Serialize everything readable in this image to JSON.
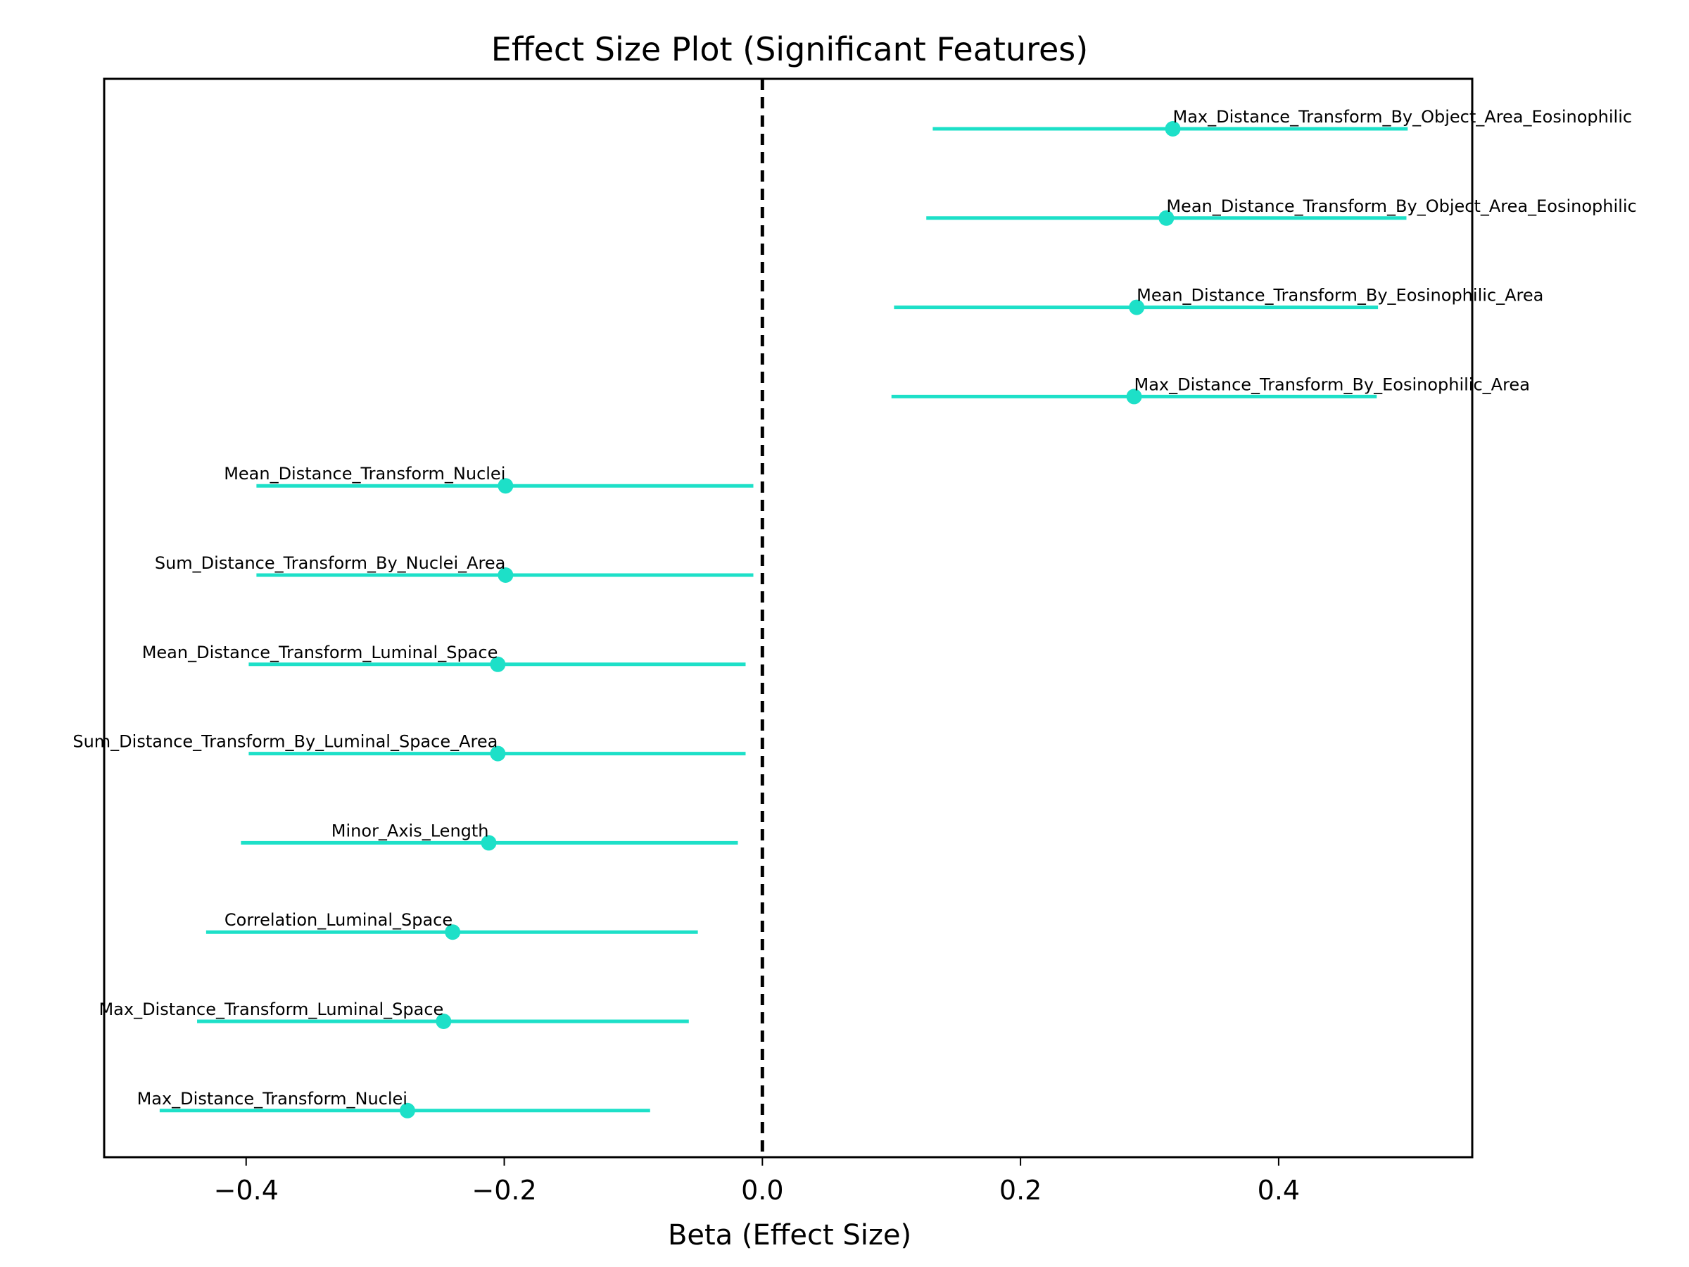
{
  "chart_data": {
    "type": "scatter",
    "title": "Effect Size Plot (Significant Features)",
    "xlabel": "Beta (Effect Size)",
    "ylabel": "",
    "xlim": [
      -0.51,
      0.55
    ],
    "xticks": [
      -0.4,
      -0.2,
      0.0,
      0.2,
      0.4
    ],
    "xtick_labels": [
      "−0.4",
      "−0.2",
      "0.0",
      "0.2",
      "0.4"
    ],
    "reference_line": {
      "x": 0.0,
      "style": "dashed",
      "color": "#000000"
    },
    "grid": false,
    "legend": "none",
    "color": "#1de0c8",
    "features": [
      {
        "name": "Max_Distance_Transform_By_Object_Area_Eosinophilic",
        "beta": 0.318,
        "ci_low": 0.132,
        "ci_high": 0.5
      },
      {
        "name": "Mean_Distance_Transform_By_Object_Area_Eosinophilic",
        "beta": 0.313,
        "ci_low": 0.127,
        "ci_high": 0.499
      },
      {
        "name": "Mean_Distance_Transform_By_Eosinophilic_Area",
        "beta": 0.29,
        "ci_low": 0.102,
        "ci_high": 0.477
      },
      {
        "name": "Max_Distance_Transform_By_Eosinophilic_Area",
        "beta": 0.288,
        "ci_low": 0.1,
        "ci_high": 0.476
      },
      {
        "name": "Mean_Distance_Transform_Nuclei",
        "beta": -0.199,
        "ci_low": -0.392,
        "ci_high": -0.007
      },
      {
        "name": "Sum_Distance_Transform_By_Nuclei_Area",
        "beta": -0.199,
        "ci_low": -0.392,
        "ci_high": -0.007
      },
      {
        "name": "Mean_Distance_Transform_Luminal_Space",
        "beta": -0.205,
        "ci_low": -0.398,
        "ci_high": -0.013
      },
      {
        "name": "Sum_Distance_Transform_By_Luminal_Space_Area",
        "beta": -0.205,
        "ci_low": -0.398,
        "ci_high": -0.013
      },
      {
        "name": "Minor_Axis_Length",
        "beta": -0.212,
        "ci_low": -0.404,
        "ci_high": -0.019
      },
      {
        "name": "Correlation_Luminal_Space",
        "beta": -0.24,
        "ci_low": -0.431,
        "ci_high": -0.05
      },
      {
        "name": "Max_Distance_Transform_Luminal_Space",
        "beta": -0.247,
        "ci_low": -0.438,
        "ci_high": -0.057
      },
      {
        "name": "Max_Distance_Transform_Nuclei",
        "beta": -0.275,
        "ci_low": -0.467,
        "ci_high": -0.087
      }
    ]
  }
}
